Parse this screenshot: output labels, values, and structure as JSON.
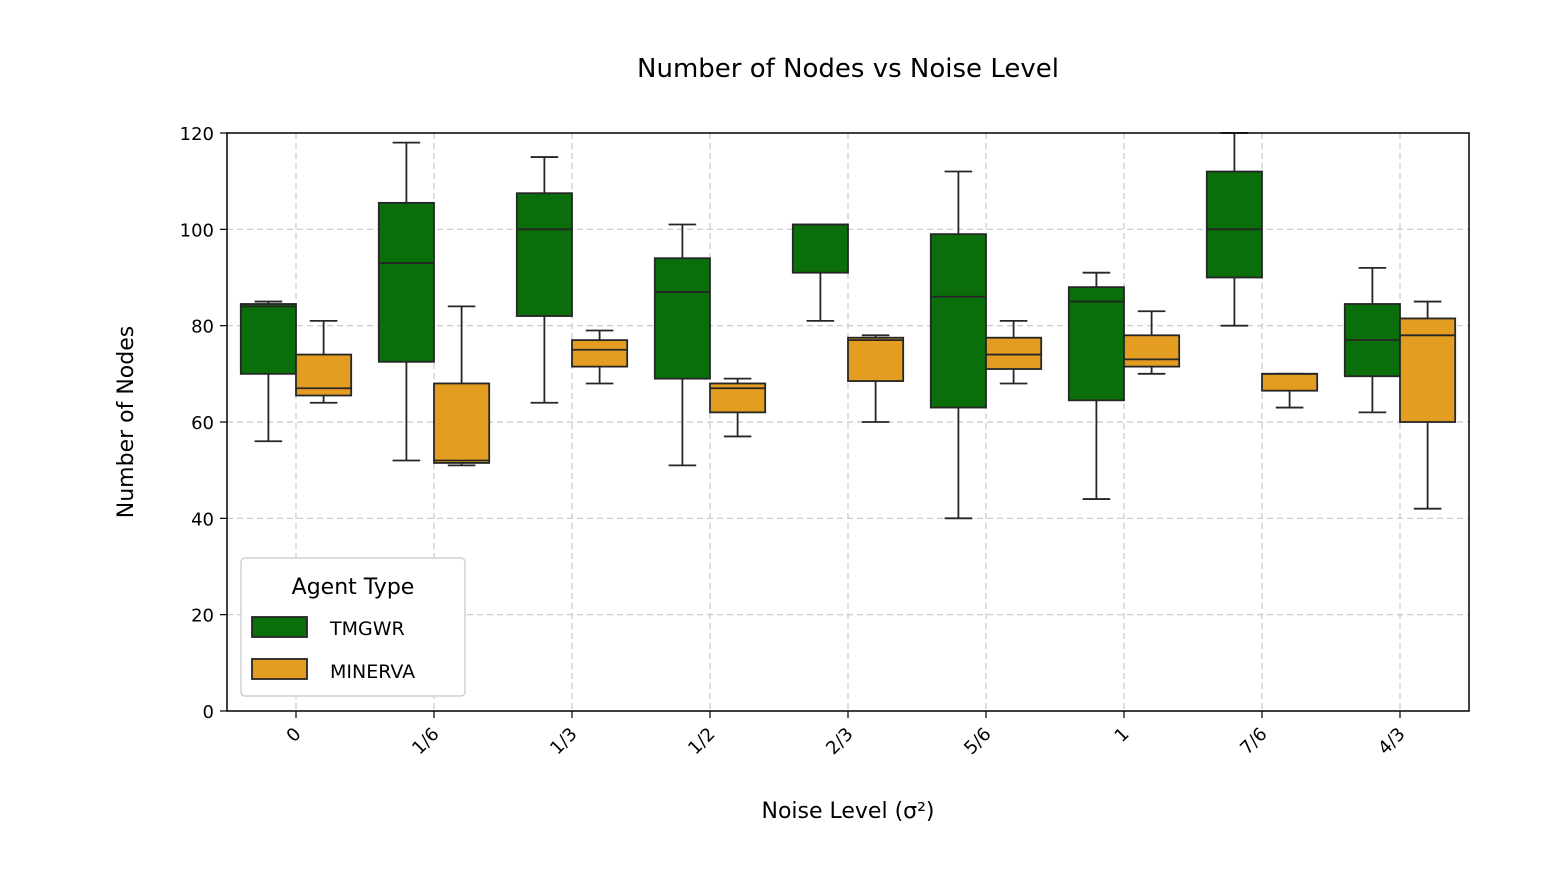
{
  "chart_data": {
    "type": "box",
    "title": "Number of Nodes vs Noise Level",
    "xlabel": "Noise Level (σ²)",
    "ylabel": "Number of Nodes",
    "ylim": [
      0,
      120
    ],
    "yticks": [
      0,
      20,
      40,
      60,
      80,
      100,
      120
    ],
    "grid": true,
    "categories": [
      "0",
      "1/6",
      "1/3",
      "1/2",
      "2/3",
      "5/6",
      "1",
      "7/6",
      "4/3"
    ],
    "legend": {
      "title": "Agent Type",
      "placement": "lower-left"
    },
    "series": [
      {
        "name": "TMGWR",
        "color": "#0a6e0a",
        "boxes": [
          {
            "whislo": 56,
            "q1": 70,
            "med": 84,
            "q3": 84.5,
            "whishi": 85
          },
          {
            "whislo": 52,
            "q1": 72.5,
            "med": 93,
            "q3": 105.5,
            "whishi": 118
          },
          {
            "whislo": 64,
            "q1": 82,
            "med": 100,
            "q3": 107.5,
            "whishi": 115
          },
          {
            "whislo": 51,
            "q1": 69,
            "med": 87,
            "q3": 94,
            "whishi": 101
          },
          {
            "whislo": 81,
            "q1": 91,
            "med": 101,
            "q3": 101,
            "whishi": 101
          },
          {
            "whislo": 40,
            "q1": 63,
            "med": 86,
            "q3": 99,
            "whishi": 112
          },
          {
            "whislo": 44,
            "q1": 64.5,
            "med": 85,
            "q3": 88,
            "whishi": 91
          },
          {
            "whislo": 80,
            "q1": 90,
            "med": 100,
            "q3": 112,
            "whishi": 120
          },
          {
            "whislo": 62,
            "q1": 69.5,
            "med": 77,
            "q3": 84.5,
            "whishi": 92
          }
        ]
      },
      {
        "name": "MINERVA",
        "color": "#e39e21",
        "boxes": [
          {
            "whislo": 64,
            "q1": 65.5,
            "med": 67,
            "q3": 74,
            "whishi": 81
          },
          {
            "whislo": 51,
            "q1": 51.5,
            "med": 52,
            "q3": 68,
            "whishi": 84
          },
          {
            "whislo": 68,
            "q1": 71.5,
            "med": 75,
            "q3": 77,
            "whishi": 79
          },
          {
            "whislo": 57,
            "q1": 62,
            "med": 67,
            "q3": 68,
            "whishi": 69
          },
          {
            "whislo": 60,
            "q1": 68.5,
            "med": 77,
            "q3": 77.5,
            "whishi": 78
          },
          {
            "whislo": 68,
            "q1": 71,
            "med": 74,
            "q3": 77.5,
            "whishi": 81
          },
          {
            "whislo": 70,
            "q1": 71.5,
            "med": 73,
            "q3": 78,
            "whishi": 83
          },
          {
            "whislo": 63,
            "q1": 66.5,
            "med": 70,
            "q3": 70,
            "whishi": 70
          },
          {
            "whislo": 42,
            "q1": 60,
            "med": 78,
            "q3": 81.5,
            "whishi": 85
          }
        ]
      }
    ]
  }
}
